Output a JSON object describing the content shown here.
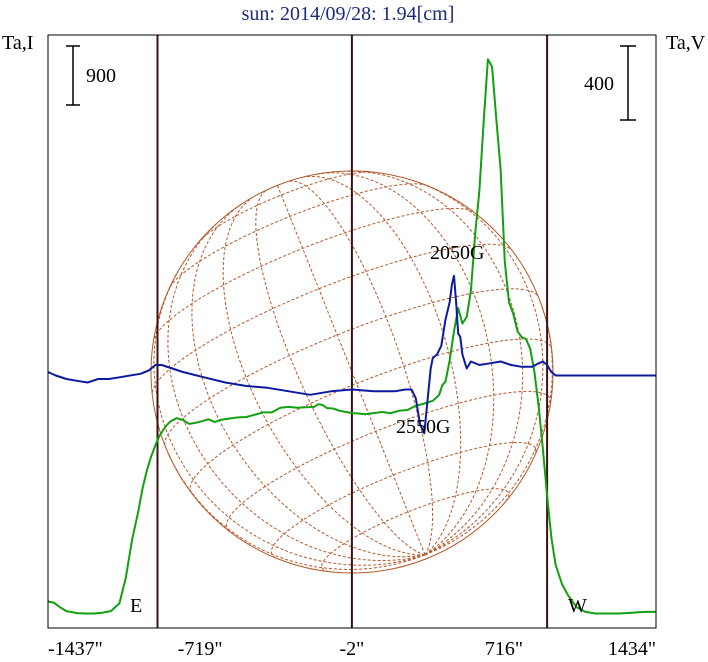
{
  "title": "sun: 2014/09/28: 1.94[cm]",
  "colors": {
    "title": "#1a2a80",
    "frame": "#000000",
    "limb_lines": "#3a1010",
    "disk": "#b5582a",
    "intensity": "#12a012",
    "polarization": "#0c1aa0",
    "background": "#ffffff"
  },
  "chart_data": {
    "type": "line",
    "title": "sun: 2014/09/28: 1.94[cm]",
    "left_axis_label": "Ta,I",
    "right_axis_label": "Ta,V",
    "xlim": [
      -1437,
      1434
    ],
    "x_ticks": [
      {
        "value": -1437,
        "label": "-1437\""
      },
      {
        "value": -719,
        "label": "-719\""
      },
      {
        "value": -2,
        "label": "-2\""
      },
      {
        "value": 716,
        "label": "716\""
      },
      {
        "value": 1434,
        "label": "1434\""
      }
    ],
    "limb_markers": [
      {
        "value": -920,
        "label": "E"
      },
      {
        "value": 920,
        "label": "W"
      }
    ],
    "center_line": -2,
    "scale_bars": {
      "left": {
        "label": "900",
        "value": 900
      },
      "right": {
        "label": "400",
        "value": 400
      }
    },
    "annotations": [
      {
        "x": 480,
        "series": "Ta,I",
        "text": "2050G"
      },
      {
        "x": 330,
        "series": "Ta,V",
        "text": "2550G"
      }
    ],
    "ylim_I": [
      0,
      5850
    ],
    "ylim_V": [
      -1720,
      1440
    ],
    "series": [
      {
        "name": "Ta,I",
        "color": "#12a012",
        "x": [
          -1437,
          -1410,
          -1380,
          -1350,
          -1330,
          -1300,
          -1260,
          -1220,
          -1180,
          -1140,
          -1100,
          -1070,
          -1040,
          -1010,
          -990,
          -970,
          -950,
          -930,
          -910,
          -880,
          -860,
          -830,
          -800,
          -770,
          -740,
          -710,
          -680,
          -650,
          -620,
          -580,
          -540,
          -500,
          -460,
          -420,
          -380,
          -340,
          -300,
          -260,
          -220,
          -180,
          -160,
          -140,
          -120,
          -90,
          -60,
          -30,
          0,
          30,
          60,
          100,
          140,
          180,
          220,
          260,
          300,
          340,
          380,
          410,
          425,
          440,
          460,
          480,
          500,
          520,
          540,
          560,
          580,
          600,
          620,
          640,
          660,
          680,
          700,
          720,
          740,
          760,
          780,
          800,
          820,
          840,
          860,
          880,
          900,
          920,
          940,
          960,
          990,
          1020,
          1060,
          1100,
          1150,
          1200,
          1260,
          1320,
          1380,
          1434
        ],
        "values": [
          350,
          320,
          200,
          100,
          80,
          50,
          40,
          40,
          60,
          100,
          300,
          950,
          1950,
          2700,
          3300,
          3750,
          4100,
          4400,
          4650,
          4900,
          5010,
          5100,
          5050,
          4950,
          4980,
          5020,
          5070,
          5000,
          5060,
          5090,
          5120,
          5130,
          5190,
          5250,
          5250,
          5370,
          5390,
          5370,
          5380,
          5390,
          5460,
          5440,
          5360,
          5350,
          5290,
          5260,
          5230,
          5220,
          5200,
          5230,
          5260,
          5230,
          5290,
          5310,
          5420,
          5480,
          5550,
          5700,
          5950,
          6050,
          6600,
          7350,
          7950,
          7550,
          7720,
          8400,
          9850,
          11000,
          12750,
          14400,
          14200,
          12850,
          11550,
          9150,
          8100,
          7800,
          7350,
          7200,
          7150,
          6900,
          6300,
          5400,
          4300,
          3100,
          2000,
          1300,
          800,
          500,
          200,
          80,
          40,
          40,
          40,
          60,
          80,
          80
        ]
      },
      {
        "name": "Ta,V",
        "color": "#0c1aa0",
        "x": [
          -1437,
          -1400,
          -1350,
          -1300,
          -1250,
          -1200,
          -1150,
          -1100,
          -1000,
          -960,
          -930,
          -900,
          -850,
          -800,
          -700,
          -600,
          -500,
          -400,
          -300,
          -200,
          -100,
          0,
          100,
          200,
          250,
          280,
          300,
          320,
          340,
          360,
          370,
          380,
          400,
          420,
          440,
          460,
          470,
          480,
          490,
          500,
          510,
          520,
          540,
          560,
          600,
          650,
          700,
          750,
          800,
          850,
          880,
          900,
          920,
          940,
          960,
          1000,
          1050,
          1100,
          1200,
          1300,
          1434
        ],
        "values": [
          0,
          -20,
          -40,
          -50,
          -60,
          -40,
          -40,
          -30,
          -10,
          10,
          40,
          40,
          20,
          0,
          -30,
          -60,
          -80,
          -90,
          -110,
          -130,
          -110,
          -100,
          -110,
          -110,
          -100,
          -100,
          -150,
          -300,
          -350,
          -100,
          20,
          80,
          100,
          150,
          300,
          400,
          500,
          550,
          400,
          220,
          200,
          100,
          20,
          60,
          40,
          50,
          60,
          40,
          30,
          30,
          50,
          60,
          40,
          0,
          -20,
          -20,
          -20,
          -20,
          -20,
          -20,
          -20
        ]
      }
    ]
  }
}
